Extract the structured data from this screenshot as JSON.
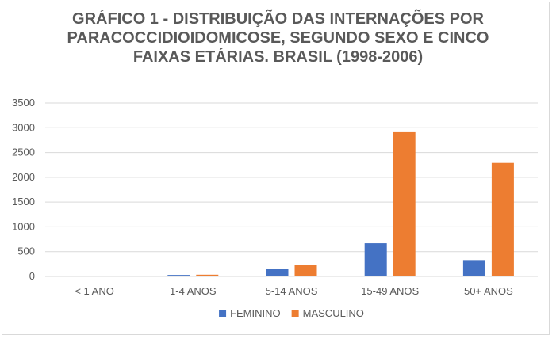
{
  "chart_data": {
    "type": "bar",
    "title_lines": [
      "GRÁFICO 1 - DISTRIBUIÇÃO DAS INTERNAÇÕES POR",
      "PARACOCCIDIOIDOMICOSE, SEGUNDO SEXO E CINCO",
      "FAIXAS ETÁRIAS. BRASIL (1998-2006)"
    ],
    "categories": [
      "< 1 ANO",
      "1-4 ANOS",
      "5-14 ANOS",
      "15-49 ANOS",
      "50+ ANOS"
    ],
    "series": [
      {
        "name": "FEMININO",
        "color": "#4472c4",
        "values": [
          0,
          30,
          150,
          670,
          330
        ]
      },
      {
        "name": "MASCULINO",
        "color": "#ed7d31",
        "values": [
          0,
          35,
          230,
          2910,
          2290
        ]
      }
    ],
    "yticks": [
      0,
      500,
      1000,
      1500,
      2000,
      2500,
      3000,
      3500
    ],
    "ylim": [
      0,
      3500
    ],
    "grid": true,
    "legend_position": "bottom"
  }
}
